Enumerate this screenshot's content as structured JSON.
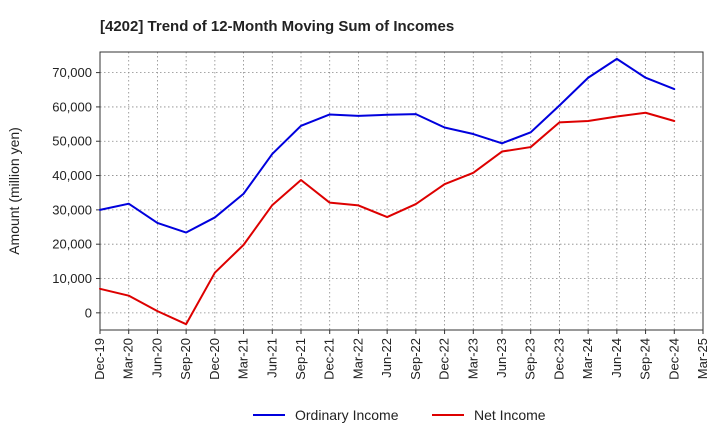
{
  "chart_data": {
    "type": "line",
    "title": "[4202]  Trend of 12-Month Moving Sum of Incomes",
    "xlabel": "",
    "ylabel": "Amount (million yen)",
    "ylim": [
      -5000,
      76000
    ],
    "yticks": [
      0,
      10000,
      20000,
      30000,
      40000,
      50000,
      60000,
      70000
    ],
    "ytick_labels": [
      "0",
      "10,000",
      "20,000",
      "30,000",
      "40,000",
      "50,000",
      "60,000",
      "70,000"
    ],
    "grid": true,
    "legend_position": "bottom",
    "categories": [
      "Dec-19",
      "Mar-20",
      "Jun-20",
      "Sep-20",
      "Dec-20",
      "Mar-21",
      "Jun-21",
      "Sep-21",
      "Dec-21",
      "Mar-22",
      "Jun-22",
      "Sep-22",
      "Dec-22",
      "Mar-23",
      "Jun-23",
      "Sep-23",
      "Dec-23",
      "Mar-24",
      "Jun-24",
      "Sep-24",
      "Dec-24",
      "Mar-25"
    ],
    "series": [
      {
        "name": "Ordinary Income",
        "color": "#0000dd",
        "values": [
          30000,
          31800,
          26200,
          23400,
          27800,
          34700,
          46300,
          54500,
          57800,
          57400,
          57700,
          57900,
          54000,
          52100,
          49400,
          52600,
          60400,
          68500,
          74000,
          68500,
          65200,
          null
        ]
      },
      {
        "name": "Net Income",
        "color": "#dd0000",
        "values": [
          7000,
          5000,
          500,
          -3300,
          11700,
          19800,
          31400,
          38700,
          32100,
          31300,
          27900,
          31700,
          37500,
          40800,
          47000,
          48300,
          55500,
          55900,
          57200,
          58300,
          55900,
          null
        ]
      }
    ]
  }
}
